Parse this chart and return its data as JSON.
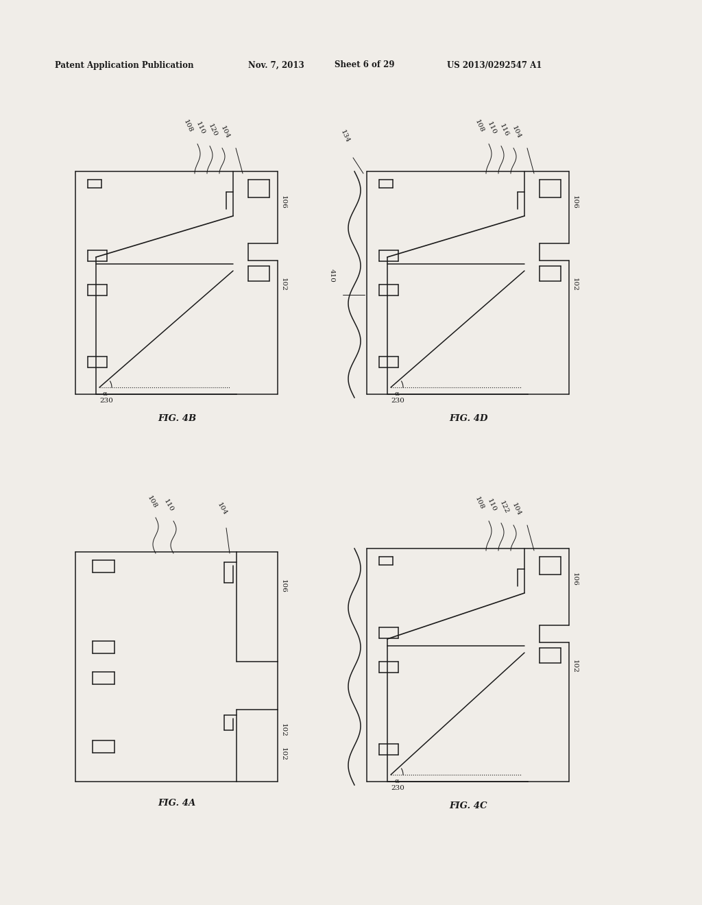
{
  "bg_color": "#f0ede8",
  "line_color": "#1a1a1a",
  "header": {
    "left": "Patent Application Publication",
    "date": "Nov. 7, 2013",
    "sheet": "Sheet 6 of 29",
    "patent": "US 2013/0292547 A1"
  },
  "figures": {
    "4B": {
      "ox": 110,
      "oy": 195,
      "fw": 290,
      "fh": 390,
      "has_angle": true,
      "has_wavy_left": false,
      "labels_top": [
        "108",
        "110",
        "120",
        "104"
      ],
      "extra_label": null
    },
    "4D": {
      "ox": 530,
      "oy": 195,
      "fw": 290,
      "fh": 390,
      "has_angle": true,
      "has_wavy_left": true,
      "labels_top": [
        "108",
        "110",
        "116",
        "104"
      ],
      "extra_label": "134",
      "mid_label": "410"
    },
    "4A": {
      "ox": 110,
      "oy": 740,
      "fw": 290,
      "fh": 410,
      "has_angle": false,
      "has_wavy_left": false,
      "labels_top": [
        "108",
        "110",
        "104"
      ],
      "extra_label": null
    },
    "4C": {
      "ox": 530,
      "oy": 740,
      "fw": 290,
      "fh": 410,
      "has_angle": true,
      "has_wavy_left": true,
      "labels_top": [
        "108",
        "110",
        "122",
        "104"
      ],
      "extra_label": null
    }
  }
}
